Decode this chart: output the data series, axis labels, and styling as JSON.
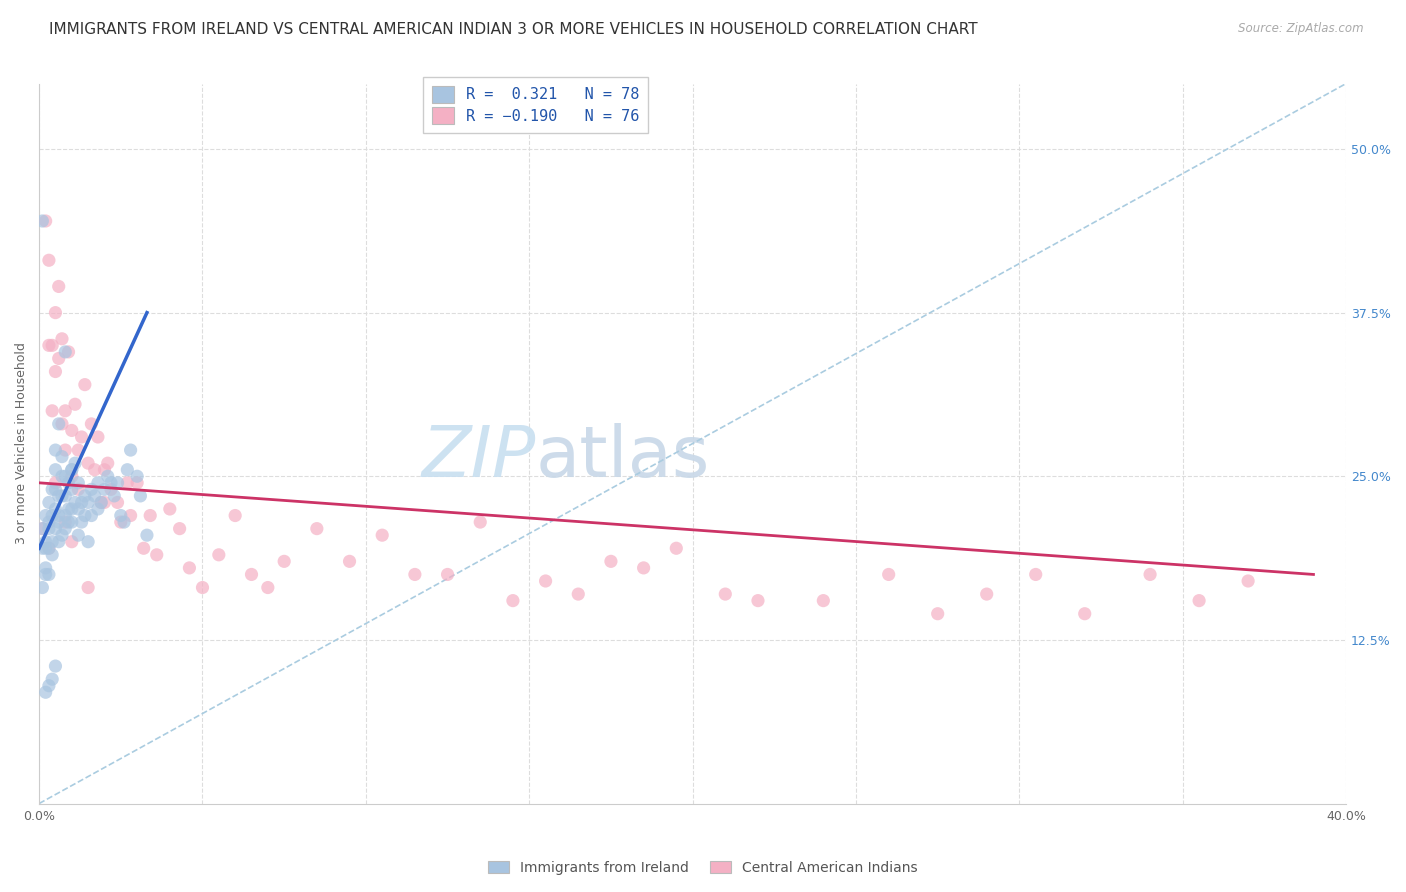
{
  "title": "IMMIGRANTS FROM IRELAND VS CENTRAL AMERICAN INDIAN 3 OR MORE VEHICLES IN HOUSEHOLD CORRELATION CHART",
  "source": "Source: ZipAtlas.com",
  "ylabel": "3 or more Vehicles in Household",
  "xlim": [
    0.0,
    0.4
  ],
  "ylim": [
    0.0,
    0.55
  ],
  "xtick_vals": [
    0.0,
    0.05,
    0.1,
    0.15,
    0.2,
    0.25,
    0.3,
    0.35,
    0.4
  ],
  "xticklabels": [
    "0.0%",
    "",
    "",
    "",
    "",
    "",
    "",
    "",
    "40.0%"
  ],
  "yticks_right": [
    0.125,
    0.25,
    0.375,
    0.5
  ],
  "ytick_right_labels": [
    "12.5%",
    "25.0%",
    "37.5%",
    "50.0%"
  ],
  "ireland_color": "#a8c4e0",
  "ireland_line_color": "#3366cc",
  "ireland_R": 0.321,
  "ireland_N": 78,
  "central_color": "#f4b0c4",
  "central_line_color": "#cc3366",
  "central_R": -0.19,
  "central_N": 76,
  "watermark_zip": "ZIP",
  "watermark_atlas": "atlas",
  "watermark_color_zip": "#c8dff0",
  "watermark_color_atlas": "#c8d8e8",
  "background_color": "#ffffff",
  "grid_color": "#dddddd",
  "title_fontsize": 11,
  "axis_label_fontsize": 9,
  "tick_fontsize": 9,
  "legend_fontsize": 11,
  "ireland_scatter_x": [
    0.001,
    0.001,
    0.001,
    0.002,
    0.002,
    0.002,
    0.002,
    0.002,
    0.003,
    0.003,
    0.003,
    0.003,
    0.003,
    0.004,
    0.004,
    0.004,
    0.004,
    0.005,
    0.005,
    0.005,
    0.005,
    0.005,
    0.006,
    0.006,
    0.006,
    0.006,
    0.007,
    0.007,
    0.007,
    0.007,
    0.008,
    0.008,
    0.008,
    0.008,
    0.009,
    0.009,
    0.009,
    0.01,
    0.01,
    0.01,
    0.01,
    0.011,
    0.011,
    0.012,
    0.012,
    0.012,
    0.013,
    0.013,
    0.014,
    0.014,
    0.015,
    0.015,
    0.016,
    0.016,
    0.017,
    0.018,
    0.018,
    0.019,
    0.02,
    0.021,
    0.022,
    0.023,
    0.024,
    0.025,
    0.026,
    0.027,
    0.028,
    0.03,
    0.031,
    0.033,
    0.001,
    0.002,
    0.003,
    0.004,
    0.005,
    0.006,
    0.008,
    0.01
  ],
  "ireland_scatter_y": [
    0.195,
    0.21,
    0.165,
    0.175,
    0.2,
    0.22,
    0.195,
    0.18,
    0.21,
    0.23,
    0.175,
    0.195,
    0.215,
    0.2,
    0.22,
    0.24,
    0.19,
    0.21,
    0.225,
    0.24,
    0.255,
    0.27,
    0.22,
    0.235,
    0.215,
    0.2,
    0.235,
    0.25,
    0.265,
    0.205,
    0.22,
    0.235,
    0.25,
    0.21,
    0.225,
    0.245,
    0.215,
    0.225,
    0.24,
    0.255,
    0.215,
    0.23,
    0.26,
    0.245,
    0.225,
    0.205,
    0.23,
    0.215,
    0.235,
    0.22,
    0.2,
    0.23,
    0.22,
    0.24,
    0.235,
    0.225,
    0.245,
    0.23,
    0.24,
    0.25,
    0.245,
    0.235,
    0.245,
    0.22,
    0.215,
    0.255,
    0.27,
    0.25,
    0.235,
    0.205,
    0.445,
    0.085,
    0.09,
    0.095,
    0.105,
    0.29,
    0.345,
    0.255
  ],
  "central_scatter_x": [
    0.001,
    0.002,
    0.003,
    0.003,
    0.004,
    0.004,
    0.005,
    0.005,
    0.006,
    0.006,
    0.007,
    0.007,
    0.008,
    0.008,
    0.009,
    0.01,
    0.01,
    0.011,
    0.012,
    0.012,
    0.013,
    0.014,
    0.015,
    0.016,
    0.017,
    0.018,
    0.019,
    0.02,
    0.021,
    0.022,
    0.024,
    0.025,
    0.027,
    0.028,
    0.03,
    0.032,
    0.034,
    0.036,
    0.04,
    0.043,
    0.046,
    0.05,
    0.055,
    0.06,
    0.065,
    0.07,
    0.075,
    0.085,
    0.095,
    0.105,
    0.115,
    0.125,
    0.135,
    0.145,
    0.155,
    0.165,
    0.175,
    0.185,
    0.195,
    0.21,
    0.22,
    0.24,
    0.26,
    0.275,
    0.29,
    0.305,
    0.32,
    0.34,
    0.355,
    0.37,
    0.003,
    0.005,
    0.008,
    0.01,
    0.015,
    0.02
  ],
  "central_scatter_y": [
    0.21,
    0.445,
    0.415,
    0.35,
    0.35,
    0.3,
    0.375,
    0.33,
    0.395,
    0.34,
    0.29,
    0.355,
    0.3,
    0.27,
    0.345,
    0.285,
    0.25,
    0.305,
    0.27,
    0.24,
    0.28,
    0.32,
    0.26,
    0.29,
    0.255,
    0.28,
    0.23,
    0.255,
    0.26,
    0.24,
    0.23,
    0.215,
    0.245,
    0.22,
    0.245,
    0.195,
    0.22,
    0.19,
    0.225,
    0.21,
    0.18,
    0.165,
    0.19,
    0.22,
    0.175,
    0.165,
    0.185,
    0.21,
    0.185,
    0.205,
    0.175,
    0.175,
    0.215,
    0.155,
    0.17,
    0.16,
    0.185,
    0.18,
    0.195,
    0.16,
    0.155,
    0.155,
    0.175,
    0.145,
    0.16,
    0.175,
    0.145,
    0.175,
    0.155,
    0.17,
    0.195,
    0.245,
    0.215,
    0.2,
    0.165,
    0.23
  ],
  "diag_line_x": [
    0.0,
    0.4
  ],
  "diag_line_y": [
    0.0,
    0.55
  ],
  "ireland_regline_x": [
    0.0,
    0.033
  ],
  "ireland_regline_y": [
    0.195,
    0.375
  ],
  "central_regline_x": [
    0.0,
    0.39
  ],
  "central_regline_y": [
    0.245,
    0.175
  ]
}
